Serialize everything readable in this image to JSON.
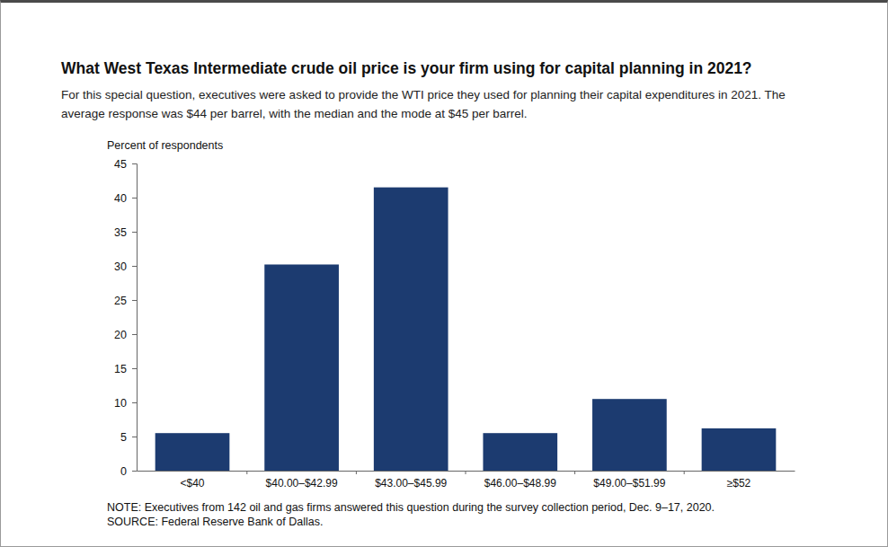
{
  "chart_data": {
    "type": "bar",
    "title": "What West Texas Intermediate crude oil price is your firm using for capital planning in 2021?",
    "subtitle": [
      "For this special question, executives were asked to provide the WTI price they used for planning their capital expenditures in 2021. The",
      "average response was $44 per barrel, with the median and the mode at $45 per barrel."
    ],
    "y_label": "Percent of respondents",
    "categories": [
      "<$40",
      "$40.00–$42.99",
      "$43.00–$45.99",
      "$46.00–$48.99",
      "$49.00–$51.99",
      "≥$52"
    ],
    "values": [
      5.5,
      30.2,
      41.5,
      5.5,
      10.5,
      6.2
    ],
    "color": "#1c3b70",
    "ylim": [
      0,
      45
    ],
    "yticks": [
      0,
      5,
      10,
      15,
      20,
      25,
      30,
      35,
      40,
      45
    ],
    "grid": false,
    "notes": [
      "NOTE: Executives from 142 oil and gas firms answered this question during the survey collection period, Dec. 9–17, 2020.",
      "SOURCE: Federal Reserve Bank of Dallas."
    ]
  }
}
